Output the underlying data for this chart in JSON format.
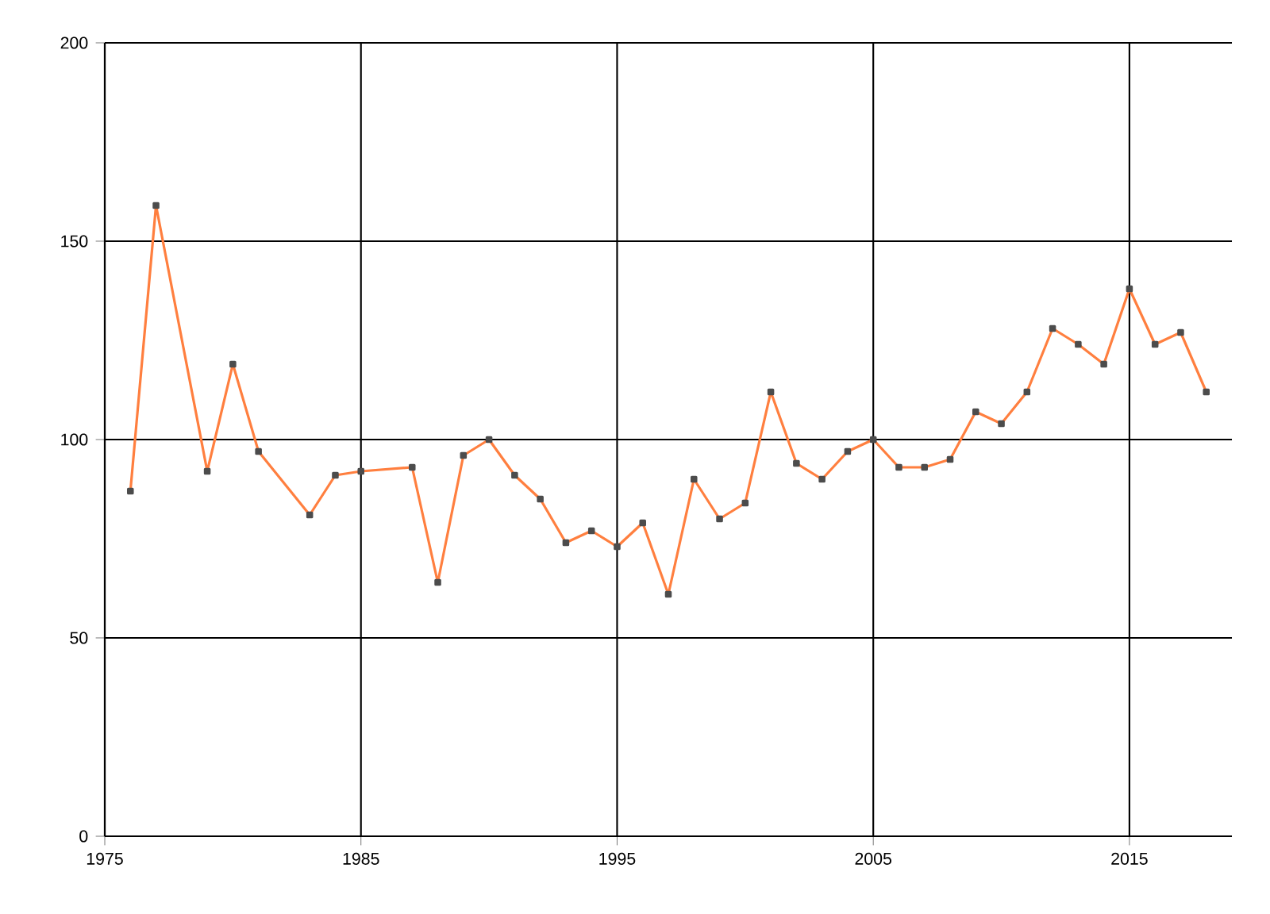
{
  "chart_data": {
    "type": "line",
    "x": [
      1976,
      1977,
      1979,
      1980,
      1981,
      1983,
      1984,
      1985,
      1987,
      1988,
      1989,
      1990,
      1991,
      1992,
      1993,
      1994,
      1995,
      1996,
      1997,
      1998,
      1999,
      2000,
      2001,
      2002,
      2003,
      2004,
      2005,
      2006,
      2007,
      2008,
      2009,
      2010,
      2011,
      2012,
      2013,
      2014,
      2015,
      2016,
      2017,
      2018
    ],
    "series": [
      {
        "color": "#ff7f3f",
        "values": [
          87,
          159,
          92,
          119,
          97,
          81,
          91,
          92,
          93,
          64,
          96,
          100,
          91,
          85,
          74,
          77,
          73,
          79,
          61,
          90,
          80,
          84,
          112,
          94,
          90,
          97,
          100,
          93,
          93,
          95,
          107,
          104,
          112,
          128,
          124,
          119,
          138,
          124,
          127,
          112
        ]
      }
    ],
    "xlim": [
      1975,
      2019
    ],
    "xticks": [
      1975,
      1985,
      1995,
      2005,
      2015
    ],
    "ylim": [
      0,
      200
    ],
    "yticks": [
      0,
      50,
      100,
      150,
      200
    ],
    "grid": true,
    "marker": "square",
    "line_style": "solid"
  }
}
